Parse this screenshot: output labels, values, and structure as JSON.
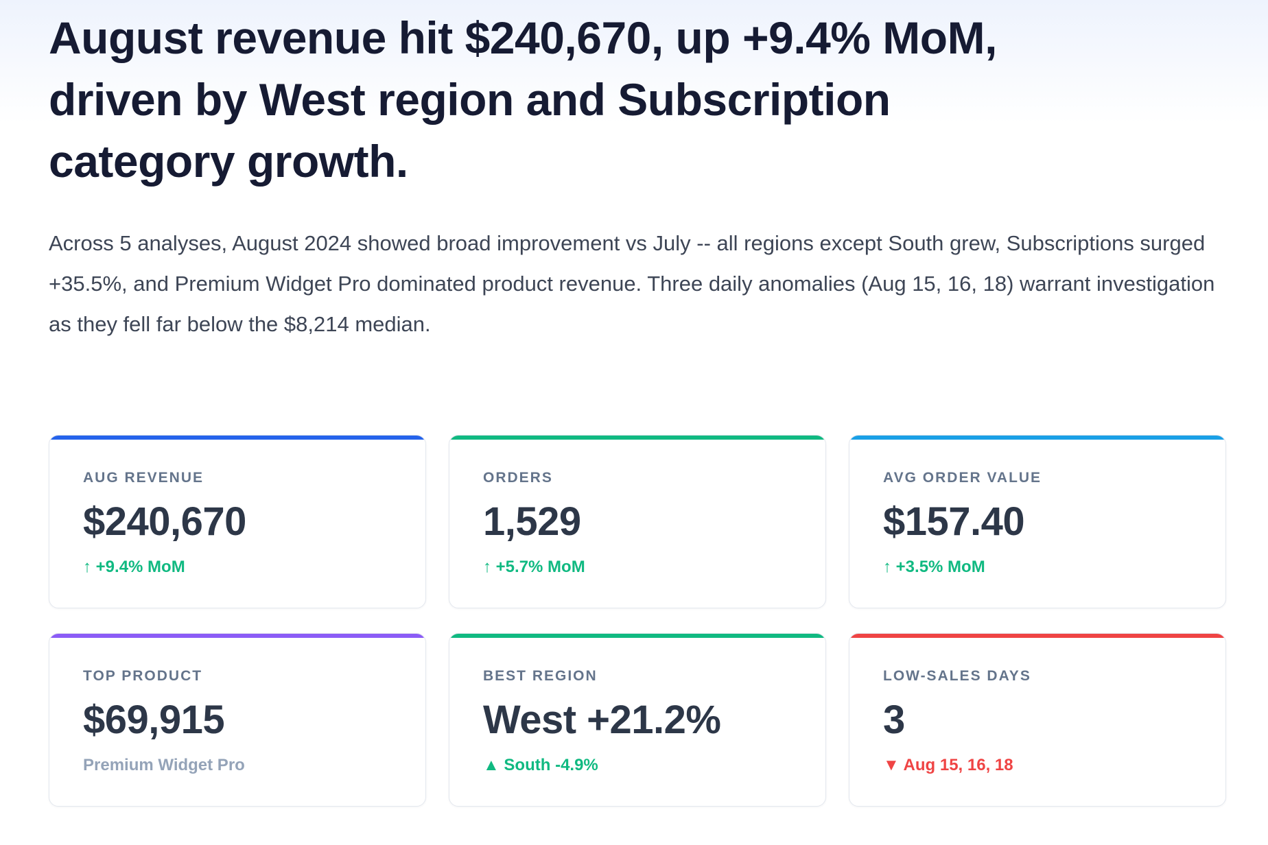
{
  "header": {
    "title": "August revenue hit $240,670, up +9.4% MoM, driven by West region and Subscription category growth.",
    "summary": "Across 5 analyses, August 2024 showed broad improvement vs July -- all regions except South grew, Subscriptions surged +35.5%, and Premium Widget Pro dominated product revenue. Three daily anomalies (Aug 15, 16, 18) warrant investigation as they fell far below the $8,214 median."
  },
  "cards": [
    {
      "label": "AUG REVENUE",
      "value": "$240,670",
      "note": "↑ +9.4% MoM",
      "accent": "#2563eb",
      "note_color": "#10b981"
    },
    {
      "label": "ORDERS",
      "value": "1,529",
      "note": "↑ +5.7% MoM",
      "accent": "#10b981",
      "note_color": "#10b981"
    },
    {
      "label": "AVG ORDER VALUE",
      "value": "$157.40",
      "note": "↑ +3.5% MoM",
      "accent": "#1aa0e6",
      "note_color": "#10b981"
    },
    {
      "label": "TOP PRODUCT",
      "value": "$69,915",
      "note": "Premium Widget Pro",
      "accent": "#8b5cf6",
      "note_color": "#94a3b8"
    },
    {
      "label": "BEST REGION",
      "value": "West +21.2%",
      "note": "▲ South -4.9%",
      "accent": "#10b981",
      "note_color": "#10b981"
    },
    {
      "label": "LOW-SALES DAYS",
      "value": "3",
      "note": "▼ Aug 15, 16, 18",
      "accent": "#ef4444",
      "note_color": "#ef4444"
    }
  ]
}
